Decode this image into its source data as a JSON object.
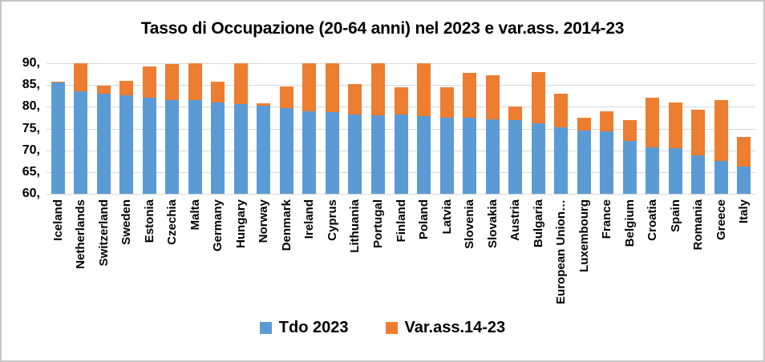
{
  "title": "Tasso di Occupazione (20-64 anni) nel 2023 e var.ass. 2014-23",
  "colors": {
    "tdo_2023": "#5B9BD5",
    "var_ass": "#ED7D31",
    "gridline": "#D9D9D9"
  },
  "legend": {
    "position": "bottom",
    "items": [
      {
        "label": "Tdo 2023",
        "color": "#5B9BD5"
      },
      {
        "label": "Var.ass.14-23",
        "color": "#ED7D31"
      }
    ]
  },
  "chart_data": {
    "type": "bar",
    "stacked": true,
    "title": "Tasso di Occupazione (20-64 anni) nel 2023 e var.ass. 2014-23",
    "xlabel": "",
    "ylabel": "",
    "ylim": [
      60,
      90
    ],
    "ytick_step": 5,
    "ytick_labels": [
      "60,",
      "65,",
      "70,",
      "75,",
      "80,",
      "85,",
      "90,"
    ],
    "grid": true,
    "legend_position": "bottom",
    "categories": [
      "Iceland",
      "Netherlands",
      "Switzerland",
      "Sweden",
      "Estonia",
      "Czechia",
      "Malta",
      "Germany",
      "Hungary",
      "Norway",
      "Denmark",
      "Ireland",
      "Cyprus",
      "Lithuania",
      "Portugal",
      "Finland",
      "Poland",
      "Latvia",
      "Slovenia",
      "Slovakia",
      "Austria",
      "Bulgaria",
      "European Union…",
      "Luxembourg",
      "France",
      "Belgium",
      "Croatia",
      "Spain",
      "Romania",
      "Greece",
      "Italy"
    ],
    "series": [
      {
        "name": "Tdo 2023",
        "color": "#5B9BD5",
        "values": [
          85.5,
          83.5,
          83.0,
          82.6,
          82.0,
          81.6,
          81.6,
          81.0,
          80.7,
          80.3,
          79.7,
          78.9,
          78.8,
          78.2,
          78.1,
          78.2,
          77.8,
          77.5,
          77.4,
          77.2,
          76.9,
          76.2,
          75.2,
          74.6,
          74.3,
          72.2,
          70.7,
          70.5,
          68.8,
          67.5,
          66.3
        ]
      },
      {
        "name": "Var.ass.14-23",
        "color": "#ED7D31",
        "values": [
          0.3,
          6.5,
          1.9,
          3.3,
          7.3,
          8.2,
          8.4,
          4.7,
          9.3,
          0.5,
          5.0,
          11.1,
          11.2,
          7.0,
          11.9,
          6.2,
          12.2,
          7.0,
          10.3,
          10.1,
          3.2,
          11.7,
          7.8,
          2.9,
          4.6,
          4.7,
          11.4,
          10.5,
          10.6,
          14.1,
          6.8
        ]
      }
    ],
    "stacked_totals_visible": [
      85.8,
      90.0,
      84.9,
      85.9,
      89.3,
      89.8,
      90.0,
      85.7,
      90.0,
      80.8,
      84.7,
      90.0,
      90.0,
      85.2,
      90.0,
      84.4,
      90.0,
      84.5,
      87.7,
      87.3,
      80.1,
      87.9,
      83.0,
      77.5,
      78.9,
      76.9,
      82.1,
      81.0,
      79.4,
      81.6,
      73.1
    ],
    "clipping_note": "Stacked bars reaching the axis maximum (Netherlands, Malta, Hungary, Ireland, Cyprus, Portugal, Poland) are drawn flat at 90, clipped by the y-axis."
  }
}
